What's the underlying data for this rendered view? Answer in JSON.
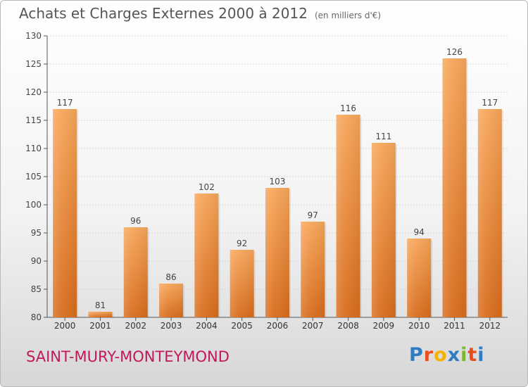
{
  "chart_data": {
    "type": "bar",
    "title": "Achats et Charges Externes 2000 à 2012",
    "subtitle": "(en milliers d'€)",
    "categories": [
      "2000",
      "2001",
      "2002",
      "2003",
      "2004",
      "2005",
      "2006",
      "2007",
      "2008",
      "2009",
      "2010",
      "2011",
      "2012"
    ],
    "values": [
      117,
      81,
      96,
      86,
      102,
      92,
      103,
      97,
      116,
      111,
      94,
      126,
      117
    ],
    "ylim": [
      80,
      130
    ],
    "yticks": [
      80,
      85,
      90,
      95,
      100,
      105,
      110,
      115,
      120,
      125,
      130
    ],
    "grid": "horizontal",
    "bar_color": "#f08a30"
  },
  "footer": {
    "commune": "SAINT-MURY-MONTEYMOND"
  },
  "logo": {
    "text": "Proxiti",
    "colors": [
      "#2e7cc4",
      "#e84e1b",
      "#f5b300",
      "#2e7cc4",
      "#7cb82f",
      "#e84e1b",
      "#2e7cc4"
    ]
  }
}
